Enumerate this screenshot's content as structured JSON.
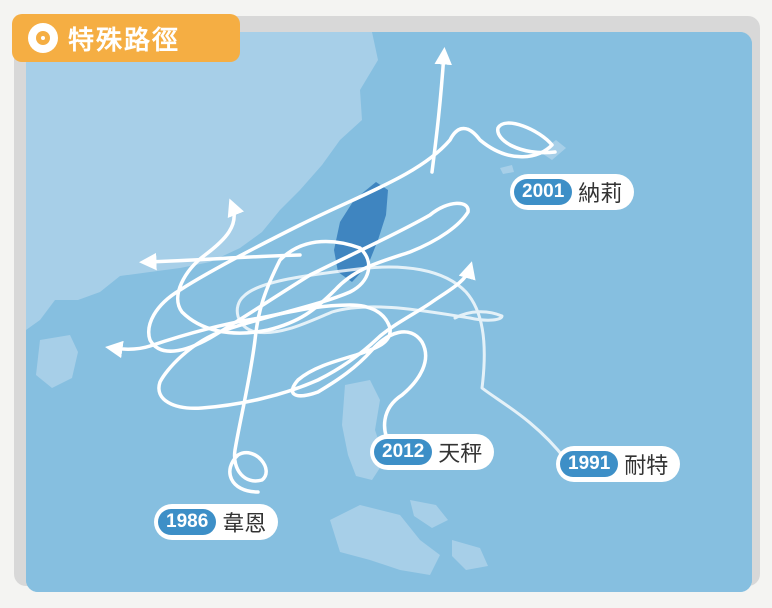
{
  "title": "特殊路徑",
  "colors": {
    "sea": "#86bfe0",
    "land": "#a7cfe8",
    "taiwan": "#3f85c0",
    "track": "#ffffff",
    "tag": "#f5ae43",
    "year_badge": "#3d8fc7"
  },
  "icons": [
    "typhoon-icon"
  ],
  "storms": [
    {
      "year": "2001",
      "name": "納莉"
    },
    {
      "year": "2012",
      "name": "天秤"
    },
    {
      "year": "1991",
      "name": "耐特"
    },
    {
      "year": "1986",
      "name": "韋恩"
    }
  ]
}
